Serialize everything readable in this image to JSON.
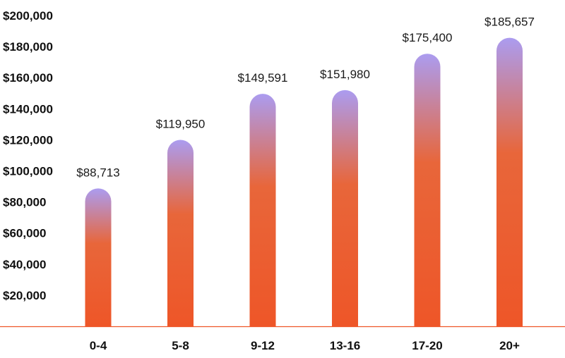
{
  "chart_data": {
    "type": "bar",
    "title": "",
    "xlabel": "",
    "ylabel": "",
    "categories": [
      "0-4",
      "5-8",
      "9-12",
      "13-16",
      "17-20",
      "20+"
    ],
    "values": [
      88713,
      119950,
      149591,
      151980,
      175400,
      185657
    ],
    "value_labels": [
      "$88,713",
      "$119,950",
      "$149,591",
      "$151,980",
      "$175,400",
      "$185,657"
    ],
    "ylim": [
      0,
      200000
    ],
    "yticks": [
      20000,
      40000,
      60000,
      80000,
      100000,
      120000,
      140000,
      160000,
      180000,
      200000
    ],
    "ytick_labels": [
      "$20,000",
      "$40,000",
      "$60,000",
      "$80,000",
      "$100,000",
      "$120,000",
      "$140,000",
      "$160,000",
      "$180,000",
      "$200,000"
    ],
    "grid": false,
    "colors": {
      "bar_bottom": "#ee5628",
      "bar_mid": "#e8663a",
      "bar_top": "#ab9cf0",
      "axis_line": "#ee5628"
    }
  }
}
